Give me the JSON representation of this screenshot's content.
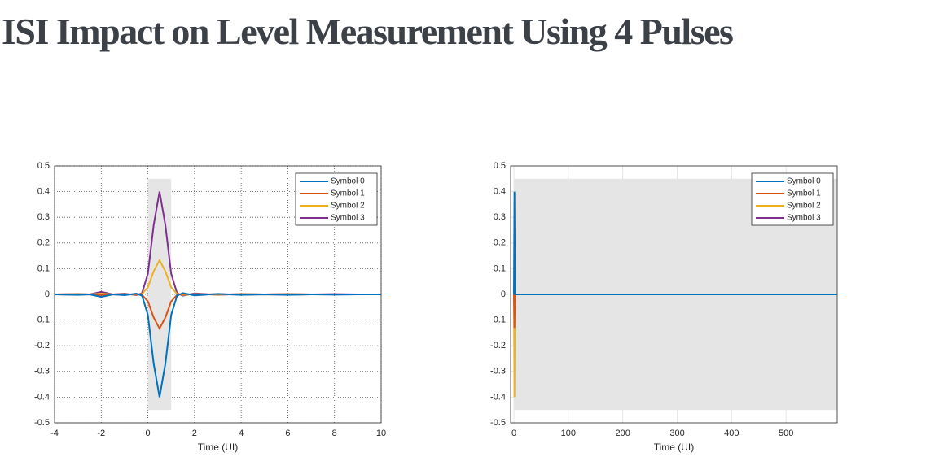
{
  "title": "ISI Impact on Level Measurement Using 4 Pulses",
  "chart_data": [
    {
      "type": "line",
      "xlabel": "Time (UI)",
      "x": [
        -4,
        -3,
        -2.5,
        -2,
        -1.5,
        -1,
        -0.5,
        -0.25,
        0,
        0.25,
        0.5,
        0.75,
        1,
        1.25,
        1.5,
        2,
        3,
        4,
        5,
        6,
        7,
        8,
        9,
        10
      ],
      "series": [
        {
          "name": "Symbol 0",
          "color": "#0072bd",
          "values": [
            0,
            -0.002,
            0,
            -0.01,
            0,
            -0.003,
            0.003,
            -0.005,
            -0.08,
            -0.27,
            -0.4,
            -0.27,
            -0.08,
            -0.005,
            0.005,
            -0.004,
            0.002,
            -0.002,
            0,
            -0.002,
            0,
            -0.001,
            0,
            0
          ]
        },
        {
          "name": "Symbol 1",
          "color": "#d95319",
          "values": [
            0,
            -0.001,
            0,
            -0.003,
            0,
            -0.001,
            0.001,
            -0.002,
            -0.027,
            -0.09,
            -0.133,
            -0.09,
            -0.027,
            -0.002,
            0.002,
            -0.001,
            0.001,
            -0.001,
            0,
            -0.001,
            0,
            0,
            0,
            0
          ]
        },
        {
          "name": "Symbol 2",
          "color": "#edb120",
          "values": [
            0,
            0.001,
            0,
            0.003,
            0,
            0.001,
            -0.001,
            0.002,
            0.027,
            0.09,
            0.133,
            0.09,
            0.027,
            0.002,
            -0.002,
            0.001,
            -0.001,
            0.001,
            0,
            0.001,
            0,
            0,
            0,
            0
          ]
        },
        {
          "name": "Symbol 3",
          "color": "#7e2f8e",
          "values": [
            0,
            0.002,
            0,
            0.01,
            0,
            0.003,
            -0.003,
            0.005,
            0.08,
            0.27,
            0.4,
            0.27,
            0.08,
            0.005,
            -0.005,
            0.004,
            -0.002,
            0.002,
            0,
            0.002,
            0,
            0.001,
            0,
            0
          ]
        }
      ],
      "xlim": [
        -4,
        10
      ],
      "xticks": [
        -4,
        -2,
        0,
        2,
        4,
        6,
        8,
        10
      ],
      "ylim": [
        -0.5,
        0.5
      ],
      "yticks": [
        -0.5,
        -0.4,
        -0.3,
        -0.2,
        -0.1,
        0,
        0.1,
        0.2,
        0.3,
        0.4,
        0.5
      ],
      "shaded_x": [
        0,
        1
      ],
      "shaded_y": [
        -0.45,
        0.45
      ],
      "grid": true,
      "grid_style": "dotted",
      "legend": "top-right"
    },
    {
      "type": "line",
      "xlabel": "Time (UI)",
      "x": [
        0,
        1,
        2,
        3,
        594
      ],
      "series": [
        {
          "name": "Symbol 0",
          "color": "#0072bd",
          "values": [
            0,
            0.4,
            0,
            0,
            0
          ]
        },
        {
          "name": "Symbol 1",
          "color": "#d95319",
          "values": [
            0,
            -0.13,
            0,
            0,
            0
          ]
        },
        {
          "name": "Symbol 2",
          "color": "#edb120",
          "values": [
            0,
            -0.4,
            0,
            0,
            0
          ]
        },
        {
          "name": "Symbol 3",
          "color": "#7e2f8e",
          "values": [
            0,
            0,
            0,
            0,
            0
          ]
        }
      ],
      "xlim": [
        -6,
        594
      ],
      "xticks": [
        0,
        100,
        200,
        300,
        400,
        500
      ],
      "ylim": [
        -0.5,
        0.5
      ],
      "yticks": [
        -0.5,
        -0.4,
        -0.3,
        -0.2,
        -0.1,
        0,
        0.1,
        0.2,
        0.3,
        0.4,
        0.5
      ],
      "shaded_x": [
        0,
        594
      ],
      "shaded_y": [
        -0.45,
        0.45
      ],
      "grid": true,
      "grid_style": "solid",
      "legend": "top-right"
    }
  ]
}
